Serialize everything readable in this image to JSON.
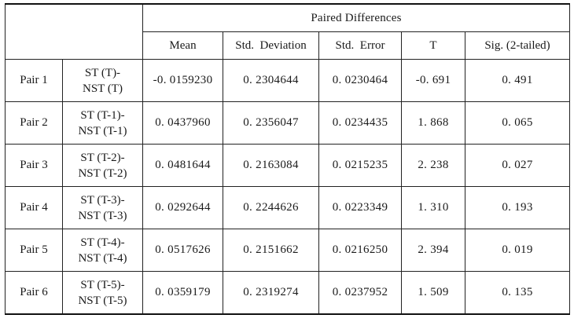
{
  "table": {
    "group_header": "Paired Differences",
    "columns": [
      "Mean",
      "Std.  Deviation",
      "Std.  Error",
      "T",
      "Sig. (2-tailed)"
    ],
    "rows": [
      {
        "pair": "Pair 1",
        "var_line1": "ST (T)-",
        "var_line2": "NST (T)",
        "mean": "-0. 0159230",
        "std_dev": "0. 2304644",
        "std_err": "0. 0230464",
        "t": "-0. 691",
        "sig": "0. 491"
      },
      {
        "pair": "Pair 2",
        "var_line1": "ST (T-1)-",
        "var_line2": "NST (T-1)",
        "mean": "0. 0437960",
        "std_dev": "0. 2356047",
        "std_err": "0. 0234435",
        "t": "1. 868",
        "sig": "0. 065"
      },
      {
        "pair": "Pair 3",
        "var_line1": "ST (T-2)-",
        "var_line2": "NST (T-2)",
        "mean": "0. 0481644",
        "std_dev": "0. 2163084",
        "std_err": "0. 0215235",
        "t": "2. 238",
        "sig": "0. 027"
      },
      {
        "pair": "Pair 4",
        "var_line1": "ST (T-3)-",
        "var_line2": "NST (T-3)",
        "mean": "0. 0292644",
        "std_dev": "0. 2244626",
        "std_err": "0. 0223349",
        "t": "1. 310",
        "sig": "0. 193"
      },
      {
        "pair": "Pair 5",
        "var_line1": "ST (T-4)-",
        "var_line2": "NST (T-4)",
        "mean": "0. 0517626",
        "std_dev": "0. 2151662",
        "std_err": "0. 0216250",
        "t": "2. 394",
        "sig": "0. 019"
      },
      {
        "pair": "Pair 6",
        "var_line1": "ST (T-5)-",
        "var_line2": "NST (T-5)",
        "mean": "0. 0359179",
        "std_dev": "0. 2319274",
        "std_err": "0. 0237952",
        "t": "1. 509",
        "sig": "0. 135"
      }
    ]
  }
}
